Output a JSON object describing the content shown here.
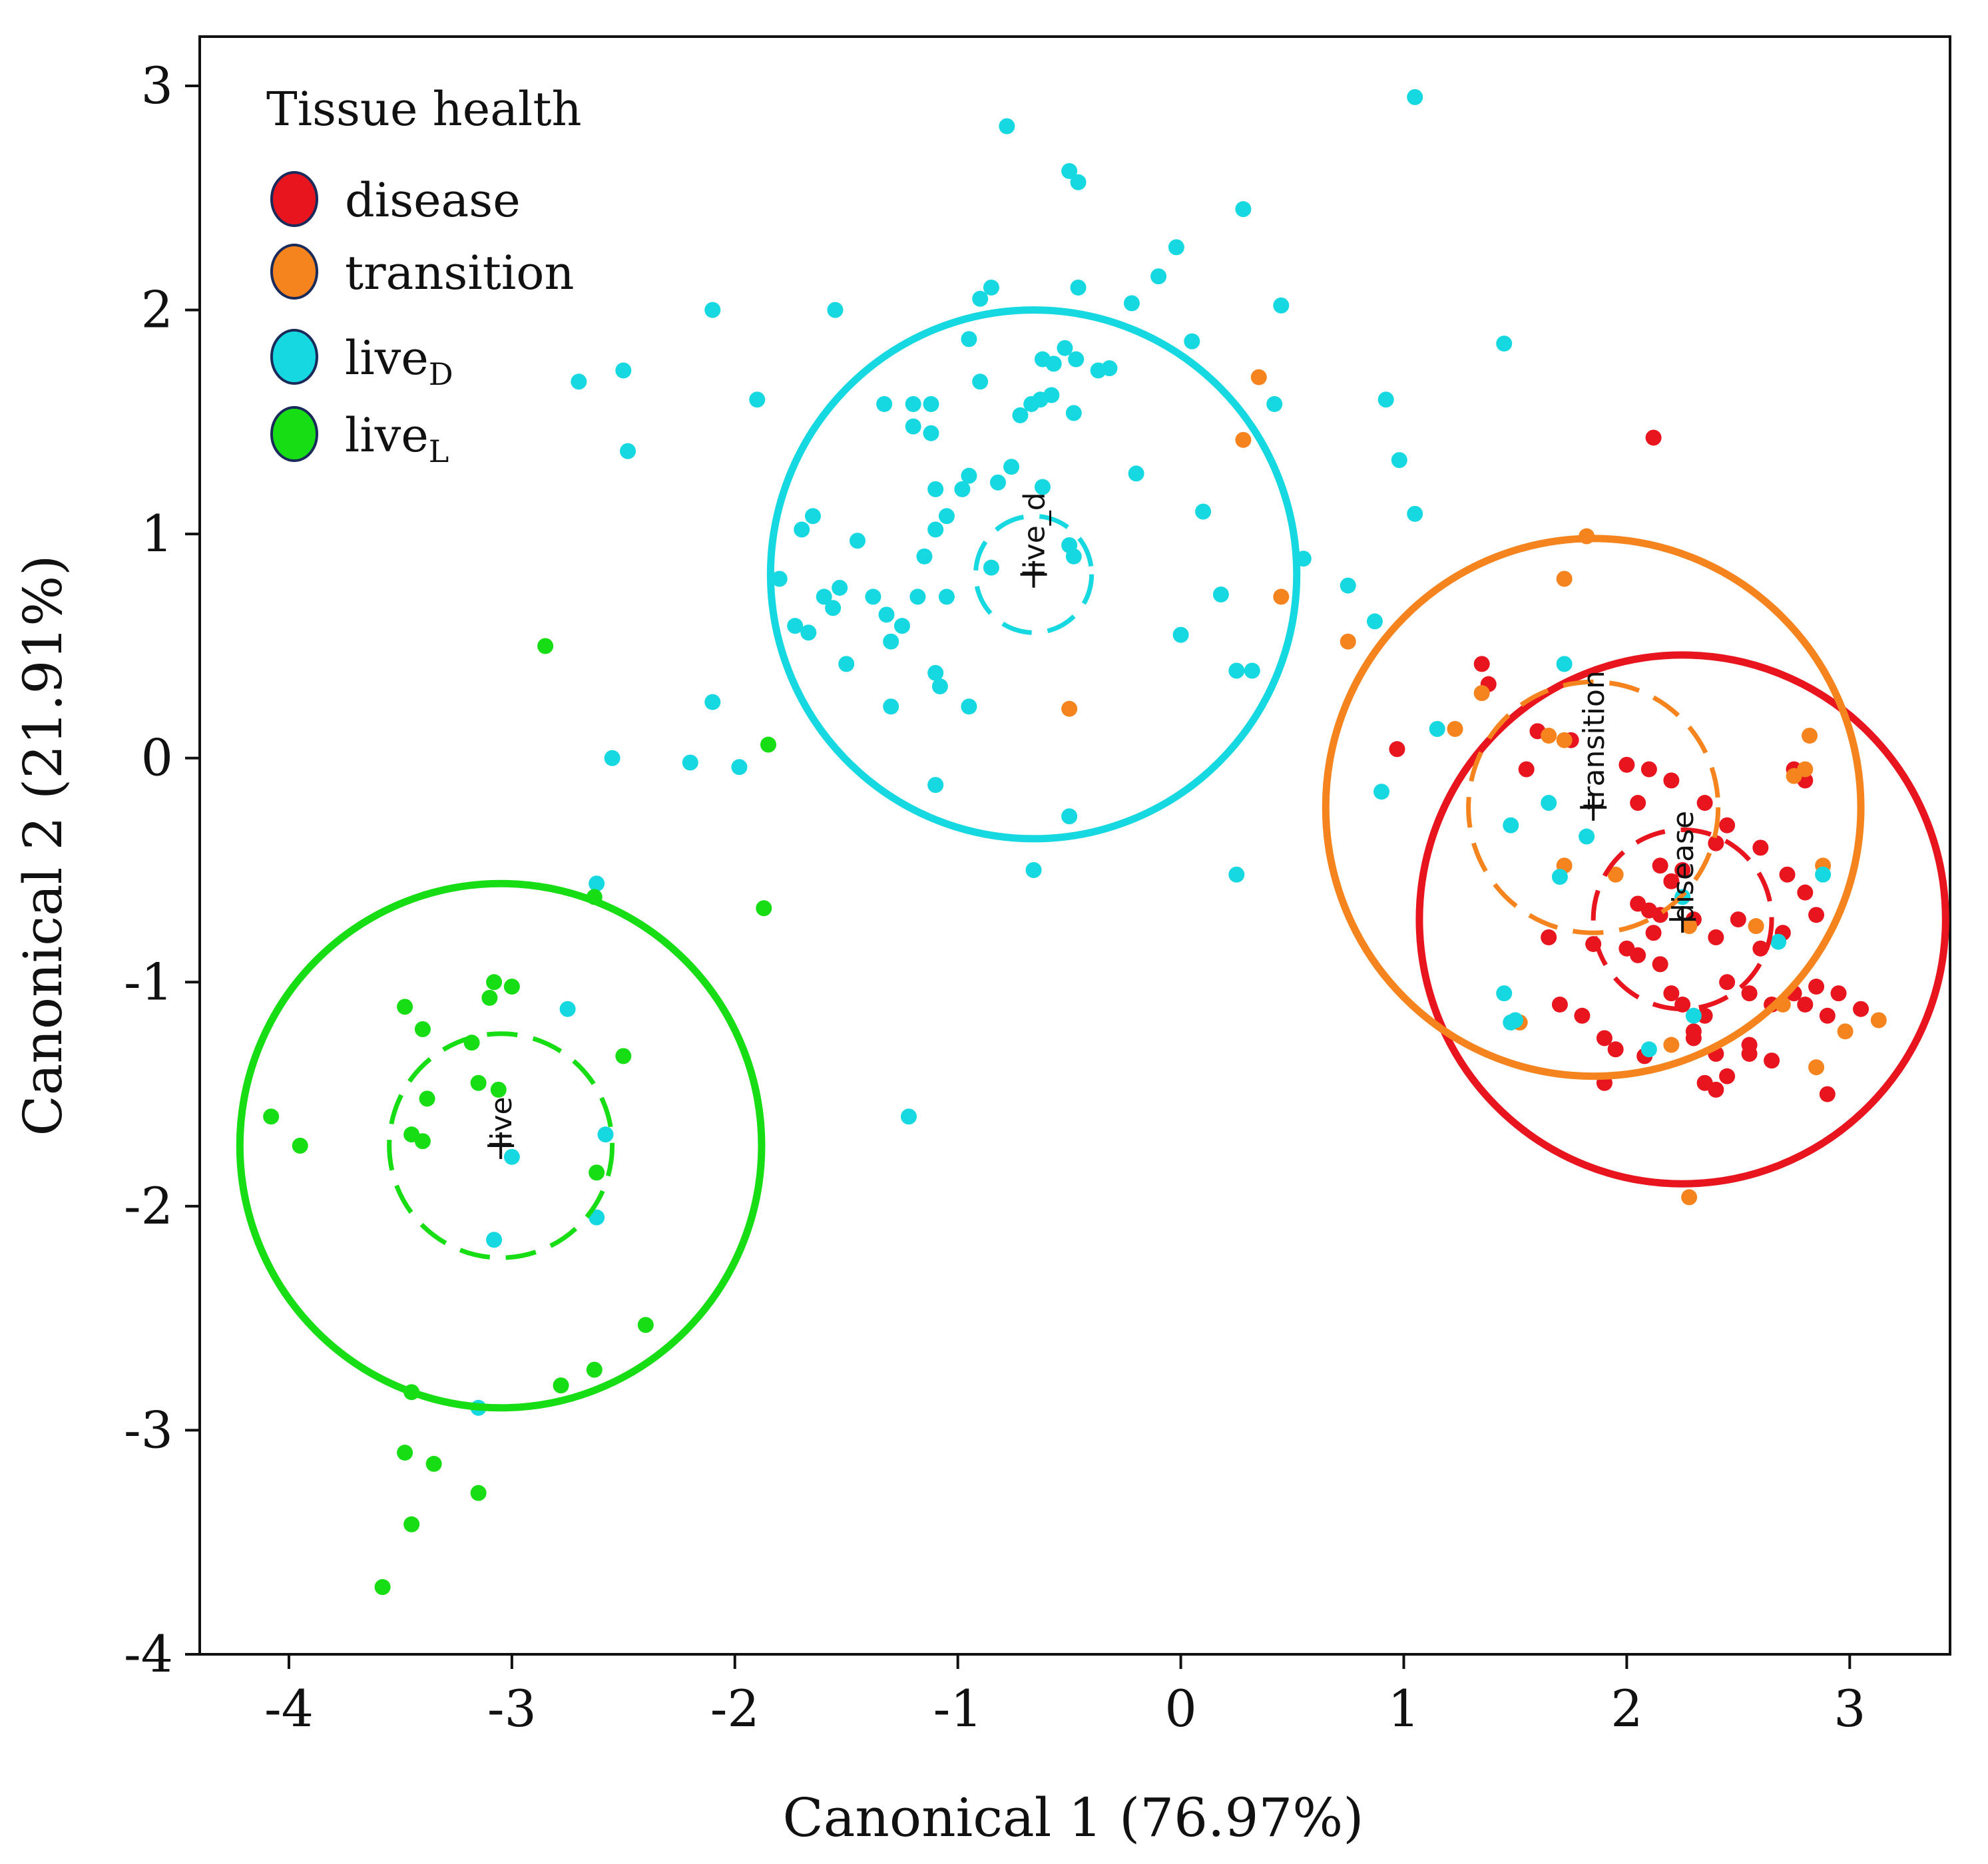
{
  "chart_data": {
    "type": "scatter",
    "xlabel": "Canonical 1 (76.97%)",
    "ylabel": "Canonical 2 (21.91%)",
    "xlim": [
      -4.4,
      3.45
    ],
    "ylim": [
      -4.0,
      3.22
    ],
    "xticks": [
      -4,
      -3,
      -2,
      -1,
      0,
      1,
      2,
      3
    ],
    "yticks": [
      -4,
      -3,
      -2,
      -1,
      0,
      1,
      2,
      3
    ],
    "grid": false,
    "legend": {
      "title": "Tissue health",
      "placement": "top-left",
      "entries": [
        {
          "key": "disease",
          "label": "disease",
          "sub": ""
        },
        {
          "key": "transition",
          "label": "transition",
          "sub": ""
        },
        {
          "key": "live_d",
          "label": "live",
          "sub": "D"
        },
        {
          "key": "live_l",
          "label": "live",
          "sub": "L"
        }
      ]
    },
    "series": [
      {
        "name": "disease",
        "color": "#e8141e",
        "centroid": {
          "x": 2.25,
          "y": -0.72,
          "label": "disease"
        },
        "circle_outer_r": 1.18,
        "circle_inner_r": 0.4,
        "points": [
          [
            2.12,
            1.43
          ],
          [
            1.35,
            0.42
          ],
          [
            1.38,
            0.33
          ],
          [
            0.97,
            0.04
          ],
          [
            2.0,
            -0.03
          ],
          [
            2.1,
            -0.05
          ],
          [
            2.2,
            -0.1
          ],
          [
            1.75,
            0.08
          ],
          [
            1.6,
            0.12
          ],
          [
            1.55,
            -0.05
          ],
          [
            2.05,
            -0.2
          ],
          [
            2.35,
            -0.2
          ],
          [
            2.45,
            -0.3
          ],
          [
            2.4,
            -0.38
          ],
          [
            2.6,
            -0.4
          ],
          [
            2.72,
            -0.52
          ],
          [
            2.8,
            -0.6
          ],
          [
            2.85,
            -0.7
          ],
          [
            2.15,
            -0.48
          ],
          [
            2.2,
            -0.55
          ],
          [
            2.25,
            -0.5
          ],
          [
            2.05,
            -0.65
          ],
          [
            2.1,
            -0.68
          ],
          [
            2.15,
            -0.7
          ],
          [
            2.12,
            -0.78
          ],
          [
            2.3,
            -0.72
          ],
          [
            2.4,
            -0.8
          ],
          [
            2.5,
            -0.72
          ],
          [
            2.6,
            -0.85
          ],
          [
            2.7,
            -0.78
          ],
          [
            1.65,
            -0.8
          ],
          [
            1.85,
            -0.83
          ],
          [
            2.0,
            -0.85
          ],
          [
            2.05,
            -0.88
          ],
          [
            2.15,
            -0.92
          ],
          [
            2.2,
            -1.05
          ],
          [
            2.25,
            -1.1
          ],
          [
            2.35,
            -1.15
          ],
          [
            2.45,
            -1.0
          ],
          [
            2.55,
            -1.05
          ],
          [
            2.65,
            -1.1
          ],
          [
            2.75,
            -1.05
          ],
          [
            2.85,
            -1.02
          ],
          [
            2.95,
            -1.05
          ],
          [
            3.05,
            -1.12
          ],
          [
            2.8,
            -1.1
          ],
          [
            2.9,
            -1.15
          ],
          [
            1.8,
            -1.15
          ],
          [
            1.9,
            -1.25
          ],
          [
            1.95,
            -1.3
          ],
          [
            2.08,
            -1.33
          ],
          [
            2.3,
            -1.25
          ],
          [
            2.4,
            -1.32
          ],
          [
            2.55,
            -1.32
          ],
          [
            2.65,
            -1.35
          ],
          [
            2.35,
            -1.45
          ],
          [
            2.4,
            -1.48
          ],
          [
            2.45,
            -1.42
          ],
          [
            2.3,
            -1.22
          ],
          [
            1.9,
            -1.45
          ],
          [
            2.9,
            -1.5
          ],
          [
            2.8,
            -0.1
          ],
          [
            2.75,
            -0.05
          ],
          [
            1.7,
            -1.1
          ],
          [
            2.55,
            -1.28
          ]
        ]
      },
      {
        "name": "transition",
        "color": "#f5841f",
        "centroid": {
          "x": 1.85,
          "y": -0.22,
          "label": "transition"
        },
        "circle_outer_r": 1.2,
        "circle_inner_r": 0.56,
        "points": [
          [
            0.35,
            1.7
          ],
          [
            0.28,
            1.42
          ],
          [
            1.82,
            0.99
          ],
          [
            1.72,
            0.8
          ],
          [
            0.45,
            0.72
          ],
          [
            0.75,
            0.52
          ],
          [
            -0.5,
            0.22
          ],
          [
            1.23,
            0.13
          ],
          [
            1.35,
            0.29
          ],
          [
            1.65,
            0.1
          ],
          [
            1.72,
            0.08
          ],
          [
            2.82,
            0.1
          ],
          [
            2.8,
            -0.05
          ],
          [
            2.75,
            -0.08
          ],
          [
            1.72,
            -0.48
          ],
          [
            1.95,
            -0.52
          ],
          [
            2.88,
            -0.48
          ],
          [
            2.28,
            -0.75
          ],
          [
            2.7,
            -1.1
          ],
          [
            2.2,
            -1.28
          ],
          [
            1.52,
            -1.18
          ],
          [
            2.85,
            -1.38
          ],
          [
            2.98,
            -1.22
          ],
          [
            3.13,
            -1.17
          ],
          [
            2.28,
            -1.96
          ],
          [
            2.58,
            -0.75
          ]
        ]
      },
      {
        "name": "live_d",
        "color": "#15d8e0",
        "centroid": {
          "x": -0.66,
          "y": 0.82,
          "label": "live_d"
        },
        "circle_outer_r": 1.18,
        "circle_inner_r": 0.26,
        "points": [
          [
            1.05,
            2.95
          ],
          [
            -0.78,
            2.82
          ],
          [
            -0.5,
            2.62
          ],
          [
            -0.46,
            2.57
          ],
          [
            0.28,
            2.45
          ],
          [
            -0.02,
            2.28
          ],
          [
            -0.1,
            2.15
          ],
          [
            -0.46,
            2.1
          ],
          [
            -0.9,
            2.05
          ],
          [
            -0.85,
            2.1
          ],
          [
            -0.22,
            2.03
          ],
          [
            -1.55,
            2.0
          ],
          [
            -2.1,
            2.0
          ],
          [
            0.45,
            2.02
          ],
          [
            -0.95,
            1.87
          ],
          [
            -0.52,
            1.83
          ],
          [
            0.05,
            1.86
          ],
          [
            1.45,
            1.85
          ],
          [
            -0.62,
            1.78
          ],
          [
            -0.57,
            1.76
          ],
          [
            -0.47,
            1.78
          ],
          [
            -0.37,
            1.73
          ],
          [
            -0.32,
            1.74
          ],
          [
            -2.7,
            1.68
          ],
          [
            -2.5,
            1.73
          ],
          [
            -0.9,
            1.68
          ],
          [
            -1.9,
            1.6
          ],
          [
            -1.33,
            1.58
          ],
          [
            -1.2,
            1.58
          ],
          [
            -1.12,
            1.58
          ],
          [
            -0.72,
            1.53
          ],
          [
            -0.67,
            1.58
          ],
          [
            -0.63,
            1.6
          ],
          [
            -0.58,
            1.62
          ],
          [
            -0.48,
            1.54
          ],
          [
            0.42,
            1.58
          ],
          [
            0.92,
            1.6
          ],
          [
            -1.2,
            1.48
          ],
          [
            -1.12,
            1.45
          ],
          [
            -2.48,
            1.37
          ],
          [
            -0.2,
            1.27
          ],
          [
            0.98,
            1.33
          ],
          [
            -1.1,
            1.2
          ],
          [
            -0.98,
            1.2
          ],
          [
            -0.95,
            1.26
          ],
          [
            -0.82,
            1.23
          ],
          [
            -0.76,
            1.3
          ],
          [
            -0.62,
            1.21
          ],
          [
            -1.05,
            1.08
          ],
          [
            -1.1,
            1.02
          ],
          [
            -1.7,
            1.02
          ],
          [
            -1.65,
            1.08
          ],
          [
            -1.45,
            0.97
          ],
          [
            1.05,
            1.09
          ],
          [
            0.1,
            1.1
          ],
          [
            -1.15,
            0.9
          ],
          [
            -0.85,
            0.85
          ],
          [
            0.55,
            0.89
          ],
          [
            -0.5,
            0.95
          ],
          [
            -0.48,
            0.9
          ],
          [
            -1.8,
            0.8
          ],
          [
            -1.6,
            0.72
          ],
          [
            -1.56,
            0.67
          ],
          [
            -1.38,
            0.72
          ],
          [
            -1.18,
            0.72
          ],
          [
            -1.05,
            0.72
          ],
          [
            -1.53,
            0.76
          ],
          [
            0.18,
            0.73
          ],
          [
            0.75,
            0.77
          ],
          [
            -1.32,
            0.64
          ],
          [
            -1.25,
            0.59
          ],
          [
            -1.73,
            0.59
          ],
          [
            -1.67,
            0.56
          ],
          [
            -1.3,
            0.52
          ],
          [
            -1.5,
            0.42
          ],
          [
            -1.1,
            0.38
          ],
          [
            -1.08,
            0.32
          ],
          [
            0.0,
            0.55
          ],
          [
            0.87,
            0.61
          ],
          [
            0.25,
            0.39
          ],
          [
            0.32,
            0.39
          ],
          [
            1.72,
            0.42
          ],
          [
            -2.1,
            0.25
          ],
          [
            -1.3,
            0.23
          ],
          [
            -0.95,
            0.23
          ],
          [
            -2.55,
            0.0
          ],
          [
            -2.2,
            -0.02
          ],
          [
            -1.98,
            -0.04
          ],
          [
            -1.1,
            -0.12
          ],
          [
            1.15,
            0.13
          ],
          [
            0.9,
            -0.15
          ],
          [
            -0.5,
            -0.26
          ],
          [
            1.48,
            -0.3
          ],
          [
            1.65,
            -0.2
          ],
          [
            1.82,
            -0.35
          ],
          [
            -0.66,
            -0.5
          ],
          [
            0.25,
            -0.52
          ],
          [
            1.7,
            -0.53
          ],
          [
            2.88,
            -0.52
          ],
          [
            -2.62,
            -0.56
          ],
          [
            2.68,
            -0.82
          ],
          [
            1.45,
            -1.05
          ],
          [
            1.5,
            -1.17
          ],
          [
            2.3,
            -1.15
          ],
          [
            -2.75,
            -1.12
          ],
          [
            -1.22,
            -1.6
          ],
          [
            -2.58,
            -1.68
          ],
          [
            -3.0,
            -1.78
          ],
          [
            -2.62,
            -2.05
          ],
          [
            -3.08,
            -2.15
          ],
          [
            -3.15,
            -2.9
          ],
          [
            2.25,
            -0.62
          ],
          [
            1.48,
            -1.18
          ],
          [
            2.1,
            -1.3
          ]
        ]
      },
      {
        "name": "live_l",
        "color": "#17dd14",
        "centroid": {
          "x": -3.05,
          "y": -1.73,
          "label": "live"
        },
        "circle_outer_r": 1.17,
        "circle_inner_r": 0.5,
        "points": [
          [
            -2.85,
            0.5
          ],
          [
            -1.85,
            0.06
          ],
          [
            -2.63,
            -0.62
          ],
          [
            -1.87,
            -0.67
          ],
          [
            -3.08,
            -1.0
          ],
          [
            -3.0,
            -1.02
          ],
          [
            -3.1,
            -1.07
          ],
          [
            -3.48,
            -1.11
          ],
          [
            -3.4,
            -1.21
          ],
          [
            -3.18,
            -1.27
          ],
          [
            -2.5,
            -1.33
          ],
          [
            -3.15,
            -1.45
          ],
          [
            -3.06,
            -1.48
          ],
          [
            -3.38,
            -1.52
          ],
          [
            -4.08,
            -1.6
          ],
          [
            -3.45,
            -1.68
          ],
          [
            -3.4,
            -1.71
          ],
          [
            -3.95,
            -1.73
          ],
          [
            -2.62,
            -1.85
          ],
          [
            -2.4,
            -2.53
          ],
          [
            -2.78,
            -2.8
          ],
          [
            -2.63,
            -2.73
          ],
          [
            -3.45,
            -2.83
          ],
          [
            -3.48,
            -3.1
          ],
          [
            -3.35,
            -3.15
          ],
          [
            -3.15,
            -3.28
          ],
          [
            -3.45,
            -3.42
          ],
          [
            -3.58,
            -3.7
          ]
        ]
      }
    ]
  }
}
